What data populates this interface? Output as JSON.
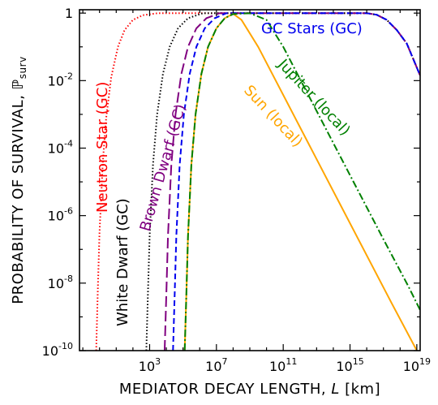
{
  "chart_data": {
    "type": "line",
    "xlabel": "MEDIATOR DECAY LENGTH, L [km]",
    "ylabel": "PROBABILITY OF SURVIVAL, ℙsurv",
    "xscale": "log",
    "yscale": "log",
    "xlim_log10": [
      -1.2,
      19.2
    ],
    "ylim_log10": [
      -10,
      0.1
    ],
    "x_tick_labels": [
      "10^3",
      "10^7",
      "10^11",
      "10^15",
      "10^19"
    ],
    "x_tick_log10": [
      3,
      7,
      11,
      15,
      19
    ],
    "y_tick_labels": [
      "1",
      "10^-2",
      "10^-4",
      "10^-6",
      "10^-8",
      "10^-10"
    ],
    "y_tick_log10": [
      0,
      -2,
      -4,
      -6,
      -8,
      -10
    ],
    "series": [
      {
        "name": "Neutron Star (GC)",
        "color": "#ff0000",
        "dash": "dotted",
        "points_log10": [
          [
            -0.2,
            -10
          ],
          [
            -0.1,
            -8.2
          ],
          [
            0,
            -6.5
          ],
          [
            0.2,
            -4.4
          ],
          [
            0.4,
            -3.1
          ],
          [
            0.7,
            -1.9
          ],
          [
            1.1,
            -1.0
          ],
          [
            1.5,
            -0.5
          ],
          [
            2,
            -0.2
          ],
          [
            2.6,
            -0.06
          ],
          [
            3.5,
            0
          ],
          [
            16,
            0
          ],
          [
            16.6,
            -0.05
          ],
          [
            17.2,
            -0.2
          ],
          [
            17.8,
            -0.5
          ],
          [
            18.4,
            -0.9
          ],
          [
            19.2,
            -1.85
          ]
        ]
      },
      {
        "name": "White Dwarf (GC)",
        "color": "#000000",
        "dash": "dotted",
        "points_log10": [
          [
            2.8,
            -10
          ],
          [
            2.9,
            -8.3
          ],
          [
            3.0,
            -6.6
          ],
          [
            3.2,
            -4.5
          ],
          [
            3.45,
            -3.0
          ],
          [
            3.8,
            -1.8
          ],
          [
            4.2,
            -1.0
          ],
          [
            4.7,
            -0.45
          ],
          [
            5.3,
            -0.15
          ],
          [
            6.2,
            0
          ],
          [
            16,
            0
          ],
          [
            16.6,
            -0.05
          ],
          [
            17.2,
            -0.2
          ],
          [
            17.8,
            -0.5
          ],
          [
            18.4,
            -0.9
          ],
          [
            19.2,
            -1.85
          ]
        ]
      },
      {
        "name": "Brown Dwarf (GC)",
        "color": "#800080",
        "dash": "longdash",
        "points_log10": [
          [
            3.9,
            -10
          ],
          [
            4.0,
            -8.3
          ],
          [
            4.1,
            -6.6
          ],
          [
            4.3,
            -4.5
          ],
          [
            4.55,
            -3.0
          ],
          [
            4.9,
            -1.8
          ],
          [
            5.3,
            -1.0
          ],
          [
            5.8,
            -0.45
          ],
          [
            6.4,
            -0.15
          ],
          [
            7.2,
            0
          ],
          [
            16,
            0
          ],
          [
            16.6,
            -0.05
          ],
          [
            17.2,
            -0.2
          ],
          [
            17.8,
            -0.5
          ],
          [
            18.4,
            -0.9
          ],
          [
            19.2,
            -1.85
          ]
        ]
      },
      {
        "name": "GC Stars (GC)",
        "color": "#0000ee",
        "dash": "dashed",
        "points_log10": [
          [
            4.4,
            -10
          ],
          [
            4.5,
            -8.3
          ],
          [
            4.6,
            -6.6
          ],
          [
            4.8,
            -4.5
          ],
          [
            5.05,
            -3.0
          ],
          [
            5.4,
            -1.8
          ],
          [
            5.8,
            -1.0
          ],
          [
            6.3,
            -0.45
          ],
          [
            6.9,
            -0.15
          ],
          [
            7.6,
            0
          ],
          [
            16,
            0
          ],
          [
            16.6,
            -0.05
          ],
          [
            17.2,
            -0.2
          ],
          [
            17.8,
            -0.5
          ],
          [
            18.4,
            -0.9
          ],
          [
            19.2,
            -1.85
          ]
        ]
      },
      {
        "name": "Sun (local)",
        "color": "#ffa500",
        "dash": "solid",
        "points_log10": [
          [
            5.1,
            -10
          ],
          [
            5.2,
            -8.3
          ],
          [
            5.3,
            -6.6
          ],
          [
            5.5,
            -4.5
          ],
          [
            5.75,
            -3.0
          ],
          [
            6.1,
            -1.8
          ],
          [
            6.5,
            -1.0
          ],
          [
            7.0,
            -0.45
          ],
          [
            7.5,
            -0.15
          ],
          [
            8.0,
            -0.02
          ],
          [
            8.5,
            -0.2
          ],
          [
            9.5,
            -1.0
          ],
          [
            11.5,
            -2.9
          ],
          [
            13.5,
            -4.8
          ],
          [
            15.5,
            -6.7
          ],
          [
            17.5,
            -8.6
          ],
          [
            19.0,
            -10
          ]
        ]
      },
      {
        "name": "Jupiter (local)",
        "color": "#008000",
        "dash": "dashdot",
        "points_log10": [
          [
            5.1,
            -10
          ],
          [
            5.2,
            -8.3
          ],
          [
            5.3,
            -6.6
          ],
          [
            5.5,
            -4.5
          ],
          [
            5.75,
            -3.0
          ],
          [
            6.1,
            -1.8
          ],
          [
            6.5,
            -1.0
          ],
          [
            7.0,
            -0.45
          ],
          [
            7.5,
            -0.15
          ],
          [
            8.0,
            -0.03
          ],
          [
            9.0,
            0
          ],
          [
            10.0,
            -0.2
          ],
          [
            11.0,
            -1.0
          ],
          [
            13.0,
            -2.9
          ],
          [
            15.0,
            -4.8
          ],
          [
            17.0,
            -6.7
          ],
          [
            18.5,
            -8.1
          ],
          [
            19.2,
            -8.8
          ]
        ]
      }
    ],
    "annotations": [
      {
        "text": "Neutron Star (GC)",
        "color": "#ff0000"
      },
      {
        "text": "White Dwarf (GC)",
        "color": "#000000"
      },
      {
        "text": "Brown Dwarf (GC)",
        "color": "#800080"
      },
      {
        "text": "GC Stars (GC)",
        "color": "#0000ee"
      },
      {
        "text": "Sun (local)",
        "color": "#ffa500"
      },
      {
        "text": "Jupiter (local)",
        "color": "#008000"
      }
    ]
  }
}
